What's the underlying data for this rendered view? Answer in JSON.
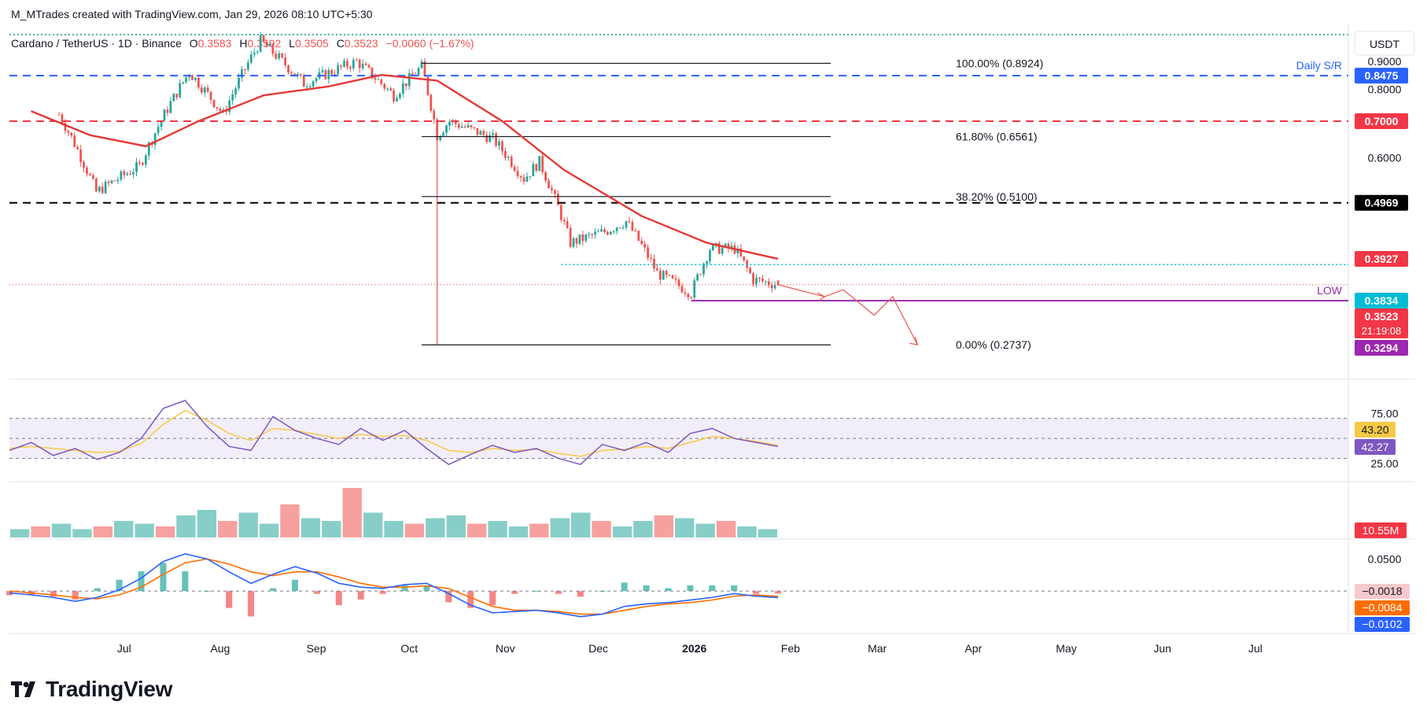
{
  "header": {
    "credit": "M_MTrades created with TradingView.com, Jan 29, 2026 08:10 UTC+5:30"
  },
  "symbol_line": {
    "name": "Cardano / TetherUS · 1D · Binance",
    "o_label": "O",
    "o_value": "0.3583",
    "h_label": "H",
    "h_value": "0.3592",
    "l_label": "L",
    "l_value": "0.3505",
    "c_label": "C",
    "c_value": "0.3523",
    "change": "−0.0060 (−1.67%)"
  },
  "currency": "USDT",
  "brand": "TradingView",
  "colors": {
    "up": "#26a69a",
    "down": "#ef5350",
    "ma": "#e53935",
    "support_blue": "#2962ff",
    "resistance_red": "#f23645",
    "rsi_line": "#7e57c2",
    "rsi_ma": "#f7c948",
    "macd": "#2962ff",
    "signal": "#ff6d00",
    "low_line": "#9c27b0"
  },
  "chart_data": [
    {
      "type": "candlestick",
      "title": "Cardano / TetherUS · 1D · Binance",
      "x_labels": [
        "Jul",
        "Aug",
        "Sep",
        "Oct",
        "Nov",
        "Dec",
        "2026",
        "Feb",
        "Mar",
        "Apr",
        "May",
        "Jun",
        "Jul"
      ],
      "y_ticks": [
        "0.9000",
        "0.8000",
        "0.6000"
      ],
      "ohlc_last": {
        "open": 0.3583,
        "high": 0.3592,
        "low": 0.3505,
        "close": 0.3523
      },
      "key_points": [
        {
          "date": "2025-06-10",
          "price": 0.72
        },
        {
          "date": "2025-06-22",
          "price": 0.52
        },
        {
          "date": "2025-07-06",
          "price": 0.58
        },
        {
          "date": "2025-07-22",
          "price": 0.86
        },
        {
          "date": "2025-08-02",
          "price": 0.72
        },
        {
          "date": "2025-08-14",
          "price": 0.98
        },
        {
          "date": "2025-08-28",
          "price": 0.82
        },
        {
          "date": "2025-09-14",
          "price": 0.9
        },
        {
          "date": "2025-09-26",
          "price": 0.78
        },
        {
          "date": "2025-10-05",
          "price": 0.88
        },
        {
          "date": "2025-10-10",
          "price": 0.66
        },
        {
          "date": "2025-10-14",
          "price": 0.7
        },
        {
          "date": "2025-10-28",
          "price": 0.65
        },
        {
          "date": "2025-11-07",
          "price": 0.55
        },
        {
          "date": "2025-11-12",
          "price": 0.59
        },
        {
          "date": "2025-11-22",
          "price": 0.42
        },
        {
          "date": "2025-12-03",
          "price": 0.44
        },
        {
          "date": "2025-12-10",
          "price": 0.46
        },
        {
          "date": "2025-12-20",
          "price": 0.37
        },
        {
          "date": "2025-12-31",
          "price": 0.34
        },
        {
          "date": "2026-01-06",
          "price": 0.41
        },
        {
          "date": "2026-01-14",
          "price": 0.41
        },
        {
          "date": "2026-01-20",
          "price": 0.36
        },
        {
          "date": "2026-01-28",
          "price": 0.3523
        }
      ],
      "moving_average": [
        {
          "date": "2025-06-01",
          "price": 0.73
        },
        {
          "date": "2025-06-20",
          "price": 0.66
        },
        {
          "date": "2025-07-08",
          "price": 0.63
        },
        {
          "date": "2025-07-25",
          "price": 0.7
        },
        {
          "date": "2025-08-15",
          "price": 0.78
        },
        {
          "date": "2025-09-05",
          "price": 0.81
        },
        {
          "date": "2025-09-22",
          "price": 0.85
        },
        {
          "date": "2025-10-10",
          "price": 0.83
        },
        {
          "date": "2025-10-31",
          "price": 0.7
        },
        {
          "date": "2025-11-20",
          "price": 0.57
        },
        {
          "date": "2025-12-15",
          "price": 0.47
        },
        {
          "date": "2026-01-05",
          "price": 0.42
        },
        {
          "date": "2026-01-28",
          "price": 0.3927
        }
      ],
      "horizontal_levels": [
        {
          "price": 0.8475,
          "label": "0.8475",
          "text": "Daily S/R",
          "style": "dashed",
          "color": "#2962ff"
        },
        {
          "price": 0.7,
          "label": "0.7000",
          "style": "dashed",
          "color": "#f23645"
        },
        {
          "price": 0.4969,
          "label": "0.4969",
          "style": "dashed",
          "color": "#000000"
        },
        {
          "price": 0.3927,
          "label": "0.3927",
          "color": "#f23645"
        },
        {
          "price": 0.3834,
          "label": "0.3834",
          "style": "dotted",
          "color": "#00bcd4"
        },
        {
          "price": 0.3523,
          "label": "0.3523",
          "countdown": "21:19:08",
          "color": "#f23645"
        },
        {
          "price": 0.3294,
          "label": "0.3294",
          "text": "LOW",
          "color": "#9c27b0"
        }
      ],
      "fibonacci": [
        {
          "label": "100.00% (0.8924)",
          "price": 0.8924
        },
        {
          "label": "61.80% (0.6561)",
          "price": 0.6561
        },
        {
          "label": "38.20% (0.5100)",
          "price": 0.51
        },
        {
          "label": "0.00% (0.2737)",
          "price": 0.2737
        }
      ],
      "projection": [
        {
          "date": "2026-01-28",
          "price": 0.3523
        },
        {
          "date": "2026-02-12",
          "price": 0.335
        },
        {
          "date": "2026-02-18",
          "price": 0.345
        },
        {
          "date": "2026-02-28",
          "price": 0.31
        },
        {
          "date": "2026-03-06",
          "price": 0.335
        },
        {
          "date": "2026-03-14",
          "price": 0.2737
        }
      ]
    },
    {
      "type": "line",
      "title": "RSI",
      "y_ticks": [
        "75.00",
        "25.00"
      ],
      "band": [
        30,
        70
      ],
      "rsi_value": "42.27",
      "rsi_ma_value": "43.20",
      "series": [
        {
          "values": [
            38,
            46,
            33,
            40,
            29,
            36,
            50,
            80,
            88,
            62,
            42,
            38,
            72,
            58,
            50,
            44,
            60,
            48,
            58,
            40,
            24,
            34,
            43,
            36,
            40,
            30,
            24,
            44,
            38,
            46,
            36,
            55,
            60,
            50,
            46,
            42
          ]
        },
        {
          "values": [
            40,
            42,
            40,
            38,
            36,
            37,
            45,
            64,
            78,
            68,
            55,
            48,
            60,
            58,
            54,
            50,
            54,
            52,
            53,
            48,
            38,
            36,
            40,
            38,
            39,
            35,
            32,
            38,
            39,
            42,
            40,
            46,
            52,
            50,
            47,
            43
          ]
        }
      ]
    },
    {
      "type": "bar",
      "title": "Volume",
      "last_value": "10.55M",
      "series": [
        {
          "values": [
            3,
            4,
            5,
            3,
            4,
            6,
            5,
            4,
            8,
            10,
            6,
            9,
            5,
            12,
            7,
            6,
            18,
            9,
            6,
            5,
            7,
            8,
            5,
            6,
            4,
            5,
            7,
            9,
            6,
            4,
            6,
            8,
            7,
            5,
            6,
            4,
            3
          ]
        }
      ]
    },
    {
      "type": "bar",
      "title": "MACD",
      "y_ticks": [
        "0.0500"
      ],
      "histogram_value": "−0.0018",
      "signal_value": "−0.0084",
      "macd_value": "−0.0102",
      "series": [
        {
          "values": [
            -0.003,
            -0.006,
            -0.01,
            -0.016,
            -0.01,
            0.002,
            0.02,
            0.046,
            0.058,
            0.05,
            0.03,
            0.012,
            0.026,
            0.038,
            0.028,
            0.012,
            0.006,
            0.004,
            0.01,
            0.012,
            -0.004,
            -0.022,
            -0.034,
            -0.032,
            -0.03,
            -0.034,
            -0.04,
            -0.036,
            -0.024,
            -0.02,
            -0.018,
            -0.014,
            -0.01,
            -0.004,
            -0.008,
            -0.0102
          ]
        },
        {
          "values": [
            0.0,
            -0.003,
            -0.006,
            -0.01,
            -0.012,
            -0.006,
            0.006,
            0.026,
            0.044,
            0.05,
            0.042,
            0.03,
            0.024,
            0.03,
            0.03,
            0.022,
            0.012,
            0.006,
            0.006,
            0.008,
            0.004,
            -0.01,
            -0.024,
            -0.03,
            -0.03,
            -0.032,
            -0.036,
            -0.036,
            -0.03,
            -0.024,
            -0.02,
            -0.018,
            -0.014,
            -0.008,
            -0.006,
            -0.0084
          ]
        }
      ]
    }
  ]
}
